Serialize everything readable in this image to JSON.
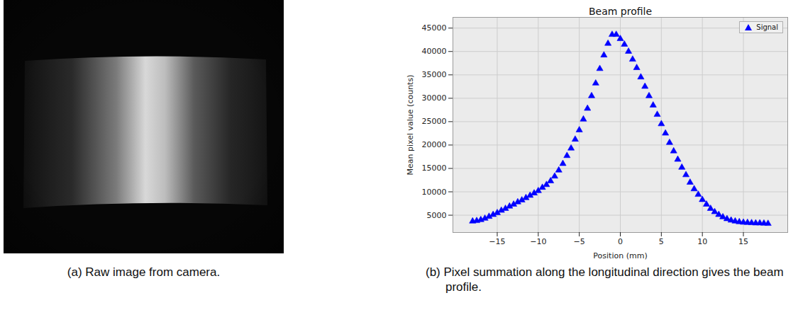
{
  "image": {
    "type": "image",
    "caption": "(a) Raw image from camera."
  },
  "chart_data": {
    "type": "scatter",
    "title": "Beam profile",
    "x_label": "Position (mm)",
    "y_label": "Mean pixel value (counts)",
    "caption": "(b) Pixel summation along the longitudinal direction gives the beam profile.",
    "x": [
      -18,
      -17.5,
      -17,
      -16.5,
      -16,
      -15.5,
      -15,
      -14.5,
      -14,
      -13.5,
      -13,
      -12.5,
      -12,
      -11.5,
      -11,
      -10.5,
      -10,
      -9.5,
      -9,
      -8.5,
      -8,
      -7.5,
      -7,
      -6.5,
      -6,
      -5.5,
      -5,
      -4.5,
      -4,
      -3.5,
      -3,
      -2.5,
      -2,
      -1.5,
      -1,
      -0.5,
      0,
      0.5,
      1,
      1.5,
      2,
      2.5,
      3,
      3.5,
      4,
      4.5,
      5,
      5.5,
      6,
      6.5,
      7,
      7.5,
      8,
      8.5,
      9,
      9.5,
      10,
      10.5,
      11,
      11.5,
      12,
      12.5,
      13,
      13.5,
      14,
      14.5,
      15,
      15.5,
      16,
      16.5,
      17,
      17.5,
      18
    ],
    "series": [
      {
        "name": "Signal",
        "color": "#0000ff",
        "marker": "triangle",
        "values": [
          3700,
          3800,
          4000,
          4300,
          4700,
          5100,
          5500,
          6000,
          6400,
          6900,
          7300,
          7800,
          8200,
          8700,
          9200,
          9700,
          10200,
          10900,
          11500,
          12300,
          13300,
          14600,
          16000,
          17700,
          19300,
          21200,
          23200,
          25500,
          27800,
          30500,
          33200,
          36300,
          39200,
          41700,
          43600,
          43600,
          42700,
          41500,
          40000,
          38300,
          36500,
          34500,
          32500,
          30500,
          28500,
          26500,
          24500,
          22500,
          20500,
          18700,
          16900,
          15200,
          13600,
          12000,
          10600,
          9400,
          8300,
          7300,
          6400,
          5700,
          5100,
          4600,
          4200,
          3900,
          3700,
          3550,
          3450,
          3400,
          3350,
          3300,
          3300,
          3250,
          3200
        ]
      }
    ],
    "xlim": [
      -20.4,
      20.4
    ],
    "ylim": [
      1300,
      47300
    ],
    "xticks": [
      -15,
      -10,
      -5,
      0,
      5,
      10,
      15
    ],
    "yticks": [
      5000,
      10000,
      15000,
      20000,
      25000,
      30000,
      35000,
      40000,
      45000
    ],
    "grid": true,
    "legend": "upper right"
  }
}
